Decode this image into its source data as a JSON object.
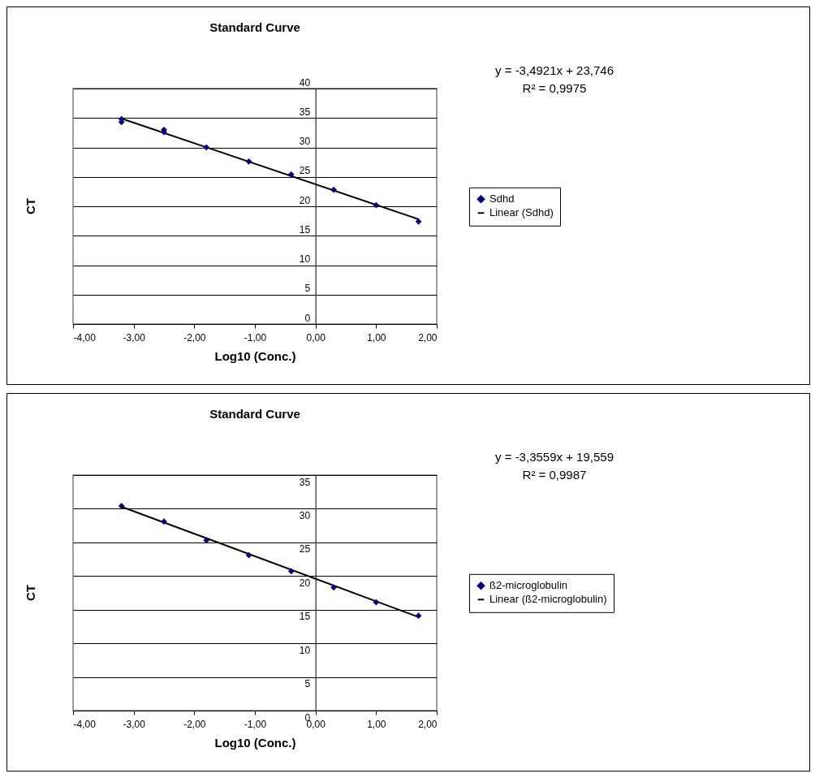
{
  "chart_data": [
    {
      "type": "scatter",
      "title": "Standard Curve",
      "xlabel": "Log10 (Conc.)",
      "ylabel": "CT",
      "annotations": [
        "y = -3,4921x + 23,746",
        "R² = 0,9975"
      ],
      "series": [
        {
          "name": "Sdhd",
          "type": "scatter",
          "color": "#000080",
          "marker": "diamond",
          "x": [
            -3.2,
            -3.2,
            -2.5,
            -2.5,
            -1.8,
            -1.1,
            -0.4,
            0.3,
            1.0,
            1.7
          ],
          "values": [
            34.8,
            34.3,
            33.0,
            32.6,
            30.0,
            27.6,
            25.4,
            22.8,
            20.2,
            17.4
          ]
        },
        {
          "name": "Linear (Sdhd)",
          "type": "line",
          "color": "#000000",
          "x": [
            -3.2,
            1.7
          ],
          "values": [
            34.9,
            17.8
          ]
        }
      ],
      "xlim": [
        -4,
        2
      ],
      "xticks": [
        {
          "value": -4,
          "label": "-4,00"
        },
        {
          "value": -3,
          "label": "-3,00"
        },
        {
          "value": -2,
          "label": "-2,00"
        },
        {
          "value": -1,
          "label": "-1,00"
        },
        {
          "value": 0,
          "label": "0,00"
        },
        {
          "value": 1,
          "label": "1,00"
        },
        {
          "value": 2,
          "label": "2,00"
        }
      ],
      "ylim": [
        0,
        40
      ],
      "yticks": [
        0,
        5,
        10,
        15,
        20,
        25,
        30,
        35,
        40
      ],
      "grid": "y",
      "legend": "right"
    },
    {
      "type": "scatter",
      "title": "Standard Curve",
      "xlabel": "Log10 (Conc.)",
      "ylabel": "CT",
      "annotations": [
        "y = -3,3559x + 19,559",
        "R² = 0,9987"
      ],
      "series": [
        {
          "name": "ß2-microglobulin",
          "type": "scatter",
          "color": "#000080",
          "marker": "diamond",
          "x": [
            -3.2,
            -2.5,
            -1.8,
            -1.1,
            -0.4,
            0.3,
            1.0,
            1.7
          ],
          "values": [
            30.4,
            28.1,
            25.3,
            23.1,
            20.7,
            18.3,
            16.1,
            14.1
          ]
        },
        {
          "name": "Linear (ß2-microglobulin)",
          "type": "line",
          "color": "#000000",
          "x": [
            -3.2,
            1.7
          ],
          "values": [
            30.3,
            13.9
          ]
        }
      ],
      "xlim": [
        -4,
        2
      ],
      "xticks": [
        {
          "value": -4,
          "label": "-4,00"
        },
        {
          "value": -3,
          "label": "-3,00"
        },
        {
          "value": -2,
          "label": "-2,00"
        },
        {
          "value": -1,
          "label": "-1,00"
        },
        {
          "value": 0,
          "label": "0,00"
        },
        {
          "value": 1,
          "label": "1,00"
        },
        {
          "value": 2,
          "label": "2,00"
        }
      ],
      "ylim": [
        0,
        35
      ],
      "yticks": [
        0,
        5,
        10,
        15,
        20,
        25,
        30,
        35
      ],
      "grid": "y",
      "legend": "right"
    }
  ]
}
